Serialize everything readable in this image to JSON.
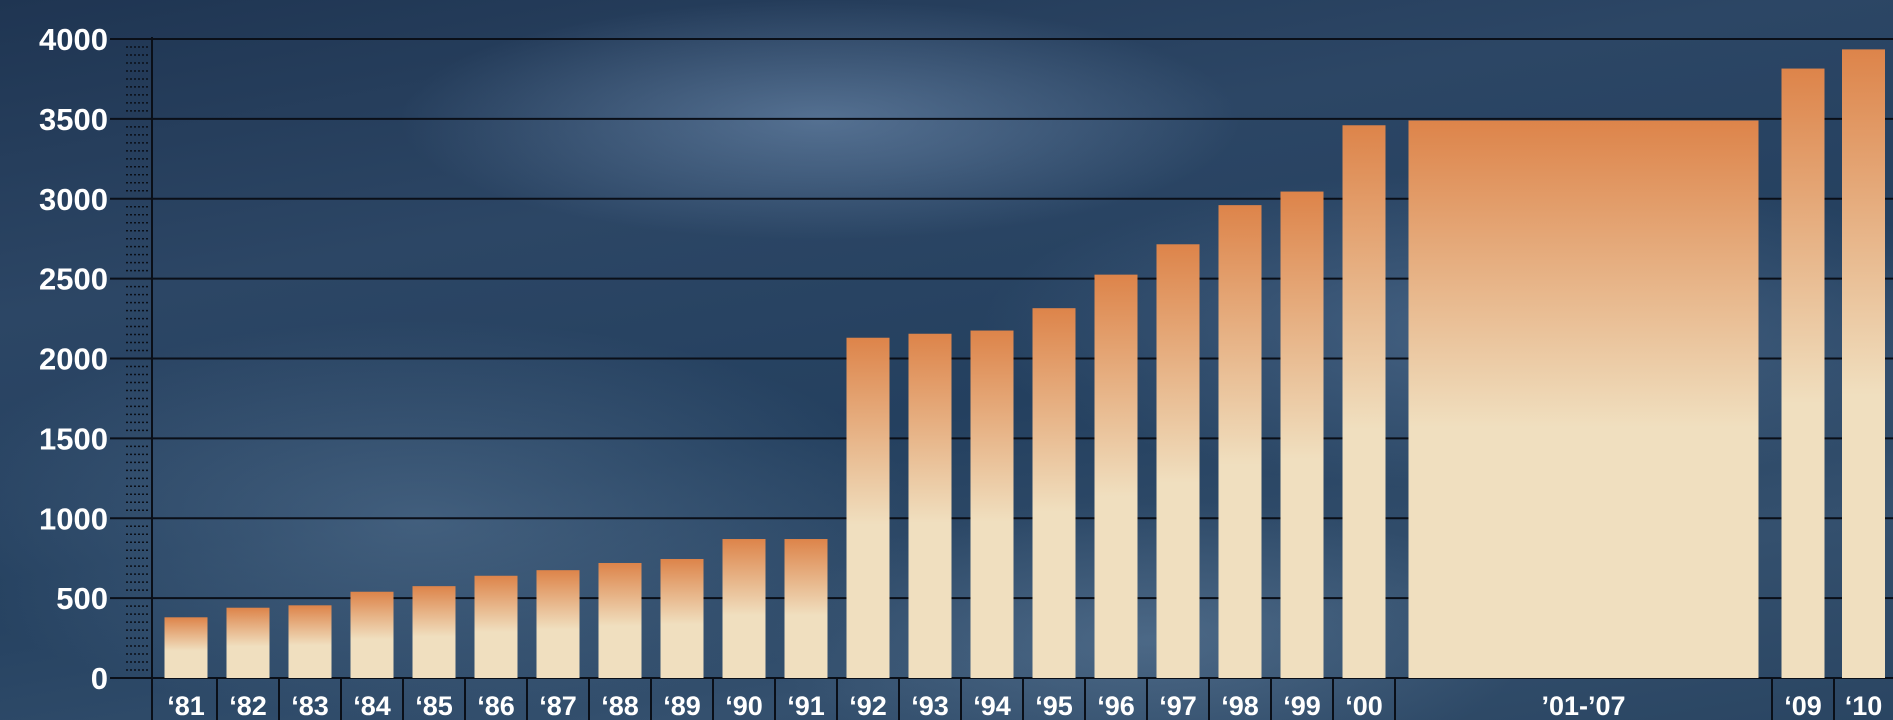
{
  "chart_data": {
    "type": "bar",
    "title": "",
    "xlabel": "",
    "ylabel": "",
    "ylim": [
      0,
      4000
    ],
    "yticks": [
      0,
      500,
      1000,
      1500,
      2000,
      2500,
      3000,
      3500,
      4000
    ],
    "grid": true,
    "bar_gradient": [
      "#f0dfbf",
      "#dd844a"
    ],
    "categories": [
      "‘81",
      "‘82",
      "‘83",
      "‘84",
      "‘85",
      "‘86",
      "‘87",
      "‘88",
      "‘89",
      "‘90",
      "‘91",
      "‘92",
      "‘93",
      "‘94",
      "‘95",
      "‘96",
      "‘97",
      "‘98",
      "‘99",
      "‘00",
      "’01-’07",
      "‘09",
      "‘10"
    ],
    "values": [
      380,
      440,
      455,
      540,
      575,
      640,
      675,
      720,
      745,
      870,
      870,
      2130,
      2155,
      2175,
      2315,
      2525,
      2715,
      2960,
      3045,
      3460,
      3490,
      3815,
      3935
    ]
  }
}
